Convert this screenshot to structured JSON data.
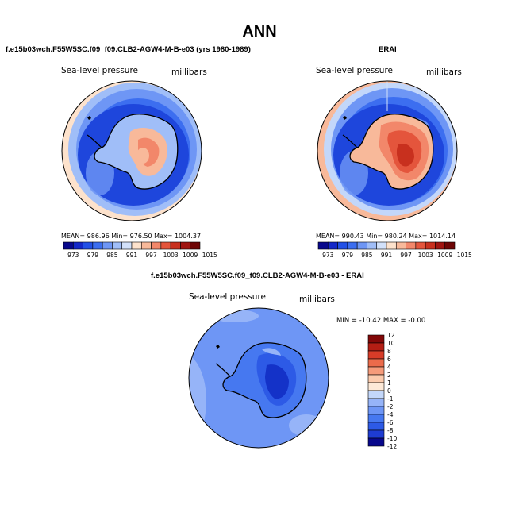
{
  "page_title": "ANN",
  "model_panel": {
    "subtitle": "f.e15b03wch.F55W5SC.f09_f09.CLB2-AGW4-M-B-e03 (yrs 1980-1989)",
    "variable_label": "Sea-level pressure",
    "units_label": "millibars",
    "stats": "MEAN= 986.96    Min= 976.50    Max= 1004.37"
  },
  "obs_panel": {
    "subtitle": "ERAI",
    "variable_label": "Sea-level pressure",
    "units_label": "millibars",
    "stats": "MEAN= 990.43    Min= 980.24    Max= 1014.14"
  },
  "diff_panel": {
    "subtitle": "f.e15b03wch.F55W5SC.f09_f09.CLB2-AGW4-M-B-e03 - ERAI",
    "variable_label": "Sea-level pressure",
    "units_label": "millibars",
    "stats": "MIN = -10.42  MAX =  -0.00"
  },
  "abs_colorbar": {
    "colors": [
      "#08088c",
      "#1428c8",
      "#2250e6",
      "#3c6ef0",
      "#6e96f5",
      "#a0bef8",
      "#d2e1fa",
      "#fde2cc",
      "#f8b99a",
      "#f2876a",
      "#e4553c",
      "#c8301e",
      "#a01410",
      "#6e0505"
    ],
    "labels": [
      "973",
      "979",
      "985",
      "991",
      "997",
      "1003",
      "1009",
      "1015"
    ]
  },
  "diff_colorbar": {
    "colors": [
      "#08088c",
      "#1e3cd2",
      "#2d5ae6",
      "#4678f0",
      "#6e96f5",
      "#96b4f8",
      "#c3d7fa",
      "#fde9d7",
      "#fbcbad",
      "#f59b7a",
      "#eb6b4b",
      "#d73c28",
      "#b41e14",
      "#820808"
    ],
    "labels": [
      "12",
      "10",
      "8",
      "6",
      "4",
      "2",
      "1",
      "0",
      "-1",
      "-2",
      "-4",
      "-6",
      "-8",
      "-10",
      "-12"
    ]
  },
  "map_colors": {
    "ocean_dark": "#1e46dc",
    "ocean_mid": "#3c6ef0",
    "ocean_light": "#6e96f5",
    "ocean_pale": "#a0bef8",
    "equator_band": "#fde2cc",
    "antarctic_high_light": "#f8b99a",
    "antarctic_high_mid": "#f2876a",
    "antarctic_high_strong": "#e4553c",
    "antarctic_high_peak": "#c8301e",
    "diff_background": "#6e96f5",
    "diff_pale": "#96b4f8",
    "diff_antarctic": "#2d5ae6",
    "diff_antarctic_core": "#1432c8"
  }
}
